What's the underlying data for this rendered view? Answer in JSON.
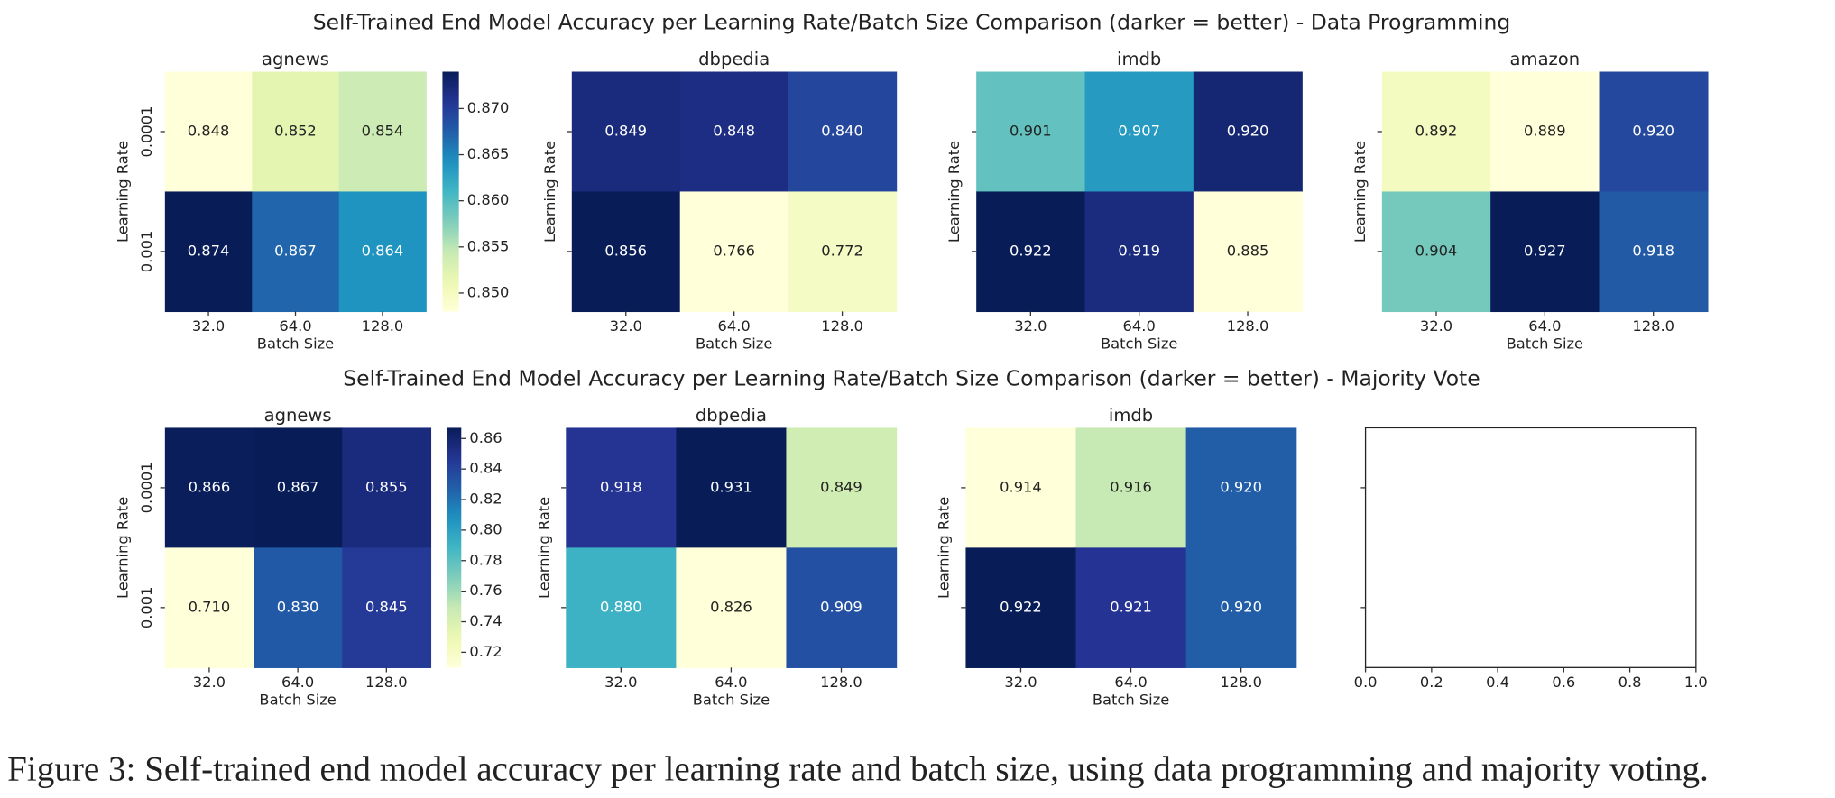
{
  "figure_titles": [
    "Self-Trained End Model Accuracy per Learning Rate/Batch Size Comparison (darker = better) - Data Programming",
    "Self-Trained End Model Accuracy per Learning Rate/Batch Size Comparison (darker = better) - Majority Vote"
  ],
  "caption": "Figure 3: Self-trained end model accuracy per learning rate and batch size, using data programming and majority voting.",
  "chart_data": [
    {
      "type": "heatmap",
      "title": "agnews",
      "x_label": "Batch Size",
      "y_label": "Learning Rate",
      "x_categories": [
        "32.0",
        "64.0",
        "128.0"
      ],
      "y_categories": [
        "0.0001",
        "0.001"
      ],
      "values": [
        [
          0.848,
          0.852,
          0.854
        ],
        [
          0.874,
          0.867,
          0.864
        ]
      ],
      "value_labels": [
        [
          "0.848",
          "0.852",
          "0.854"
        ],
        [
          "0.874",
          "0.867",
          "0.864"
        ]
      ],
      "colormap": "YlGnBu",
      "colorbar_ticks": [
        {
          "value": 0.85,
          "label": "0.850"
        },
        {
          "value": 0.855,
          "label": "0.855"
        },
        {
          "value": 0.86,
          "label": "0.860"
        },
        {
          "value": 0.865,
          "label": "0.865"
        },
        {
          "value": 0.87,
          "label": "0.870"
        }
      ]
    },
    {
      "type": "heatmap",
      "title": "dbpedia",
      "x_label": "Batch Size",
      "y_label": "Learning Rate",
      "x_categories": [
        "32.0",
        "64.0",
        "128.0"
      ],
      "y_categories": [
        null,
        null
      ],
      "values": [
        [
          0.849,
          0.848,
          0.84
        ],
        [
          0.856,
          0.766,
          0.772
        ]
      ],
      "value_labels": [
        [
          "0.849",
          "0.848",
          "0.840"
        ],
        [
          "0.856",
          "0.766",
          "0.772"
        ]
      ],
      "colormap": "YlGnBu"
    },
    {
      "type": "heatmap",
      "title": "imdb",
      "x_label": "Batch Size",
      "y_label": "Learning Rate",
      "x_categories": [
        "32.0",
        "64.0",
        "128.0"
      ],
      "y_categories": [
        null,
        null
      ],
      "values": [
        [
          0.901,
          0.907,
          0.92
        ],
        [
          0.922,
          0.919,
          0.885
        ]
      ],
      "value_labels": [
        [
          "0.901",
          "0.907",
          "0.920"
        ],
        [
          "0.922",
          "0.919",
          "0.885"
        ]
      ],
      "colormap": "YlGnBu"
    },
    {
      "type": "heatmap",
      "title": "amazon",
      "x_label": "Batch Size",
      "y_label": "Learning Rate",
      "x_categories": [
        "32.0",
        "64.0",
        "128.0"
      ],
      "y_categories": [
        null,
        null
      ],
      "values": [
        [
          0.892,
          0.889,
          0.92
        ],
        [
          0.904,
          0.927,
          0.918
        ]
      ],
      "value_labels": [
        [
          "0.892",
          "0.889",
          "0.920"
        ],
        [
          "0.904",
          "0.927",
          "0.918"
        ]
      ],
      "colormap": "YlGnBu"
    },
    {
      "type": "heatmap",
      "title": "agnews",
      "x_label": "Batch Size",
      "y_label": "Learning Rate",
      "x_categories": [
        "32.0",
        "64.0",
        "128.0"
      ],
      "y_categories": [
        "0.0001",
        "0.001"
      ],
      "values": [
        [
          0.866,
          0.867,
          0.855
        ],
        [
          0.71,
          0.83,
          0.845
        ]
      ],
      "value_labels": [
        [
          "0.866",
          "0.867",
          "0.855"
        ],
        [
          "0.710",
          "0.830",
          "0.845"
        ]
      ],
      "colormap": "YlGnBu",
      "colorbar_ticks": [
        {
          "value": 0.72,
          "label": "0.72"
        },
        {
          "value": 0.74,
          "label": "0.74"
        },
        {
          "value": 0.76,
          "label": "0.76"
        },
        {
          "value": 0.78,
          "label": "0.78"
        },
        {
          "value": 0.8,
          "label": "0.80"
        },
        {
          "value": 0.82,
          "label": "0.82"
        },
        {
          "value": 0.84,
          "label": "0.84"
        },
        {
          "value": 0.86,
          "label": "0.86"
        }
      ]
    },
    {
      "type": "heatmap",
      "title": "dbpedia",
      "x_label": "Batch Size",
      "y_label": "Learning Rate",
      "x_categories": [
        "32.0",
        "64.0",
        "128.0"
      ],
      "y_categories": [
        null,
        null
      ],
      "values": [
        [
          0.918,
          0.931,
          0.849
        ],
        [
          0.88,
          0.826,
          0.909
        ]
      ],
      "value_labels": [
        [
          "0.918",
          "0.931",
          "0.849"
        ],
        [
          "0.880",
          "0.826",
          "0.909"
        ]
      ],
      "colormap": "YlGnBu"
    },
    {
      "type": "heatmap",
      "title": "imdb",
      "x_label": "Batch Size",
      "y_label": "Learning Rate",
      "x_categories": [
        "32.0",
        "64.0",
        "128.0"
      ],
      "y_categories": [
        null,
        null
      ],
      "values": [
        [
          0.914,
          0.916,
          0.92
        ],
        [
          0.922,
          0.921,
          0.92
        ]
      ],
      "value_labels": [
        [
          "0.914",
          "0.916",
          "0.920"
        ],
        [
          "0.922",
          "0.921",
          "0.920"
        ]
      ],
      "colormap": "YlGnBu"
    },
    {
      "type": "axes",
      "xlim": [
        0,
        1
      ],
      "xticks": [
        {
          "value": 0,
          "label": "0.0"
        },
        {
          "value": 0.2,
          "label": "0.2"
        },
        {
          "value": 0.4,
          "label": "0.4"
        },
        {
          "value": 0.6,
          "label": "0.6"
        },
        {
          "value": 0.8,
          "label": "0.8"
        },
        {
          "value": 1,
          "label": "1.0"
        }
      ]
    }
  ]
}
